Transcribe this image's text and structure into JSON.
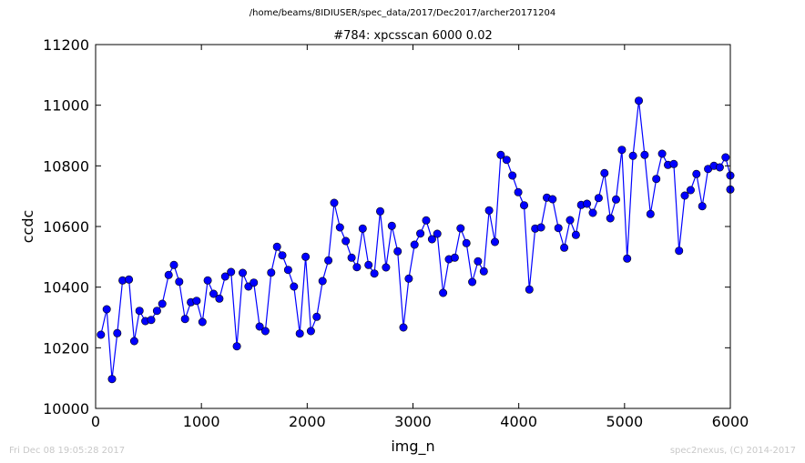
{
  "header": {
    "suptitle": "/home/beams/8IDIUSER/spec_data/2017/Dec2017/archer20171204"
  },
  "footer": {
    "timestamp": "Fri Dec 08 19:05:28 2017",
    "credit": "spec2nexus, (C) 2014-2017"
  },
  "chart_data": {
    "type": "line",
    "title": "#784: xpcsscan 6000 0.02",
    "xlabel": "img_n",
    "ylabel": "ccdc",
    "xlim": [
      0,
      6000
    ],
    "ylim": [
      10000,
      11200
    ],
    "xticks": [
      0,
      1000,
      2000,
      3000,
      4000,
      5000,
      6000
    ],
    "yticks": [
      10000,
      10200,
      10400,
      10600,
      10800,
      11000,
      11200
    ],
    "grid": false,
    "color": "#0000ff",
    "marker": "circle",
    "series": [
      {
        "x": [
          50,
          105,
          155,
          205,
          255,
          315,
          365,
          415,
          470,
          525,
          580,
          630,
          690,
          740,
          790,
          845,
          900,
          955,
          1010,
          1060,
          1115,
          1170,
          1225,
          1280,
          1335,
          1390,
          1445,
          1495,
          1550,
          1605,
          1660,
          1715,
          1765,
          1820,
          1875,
          1930,
          1985,
          2035,
          2090,
          2145,
          2200,
          2255,
          2310,
          2365,
          2420,
          2470,
          2525,
          2580,
          2635,
          2690,
          2745,
          2800,
          2855,
          2910,
          2960,
          3015,
          3070,
          3125,
          3180,
          3230,
          3285,
          3340,
          3395,
          3450,
          3505,
          3560,
          3615,
          3670,
          3720,
          3775,
          3830,
          3885,
          3940,
          3995,
          4050,
          4100,
          4155,
          4210,
          4265,
          4320,
          4375,
          4430,
          4485,
          4540,
          4590,
          4645,
          4700,
          4755,
          4810,
          4865,
          4920,
          4975,
          5025,
          5080,
          5135,
          5190,
          5245,
          5300,
          5355,
          5410,
          5465,
          5515,
          5570,
          5625,
          5680,
          5735,
          5790,
          5845,
          5900,
          5955,
          6000,
          6000
        ],
        "y": [
          10243,
          10327,
          10097,
          10248,
          10422,
          10425,
          10222,
          10322,
          10288,
          10292,
          10322,
          10345,
          10440,
          10473,
          10418,
          10295,
          10350,
          10355,
          10285,
          10422,
          10378,
          10362,
          10435,
          10450,
          10205,
          10447,
          10402,
          10415,
          10270,
          10255,
          10448,
          10533,
          10505,
          10457,
          10402,
          10247,
          10500,
          10255,
          10302,
          10420,
          10488,
          10678,
          10597,
          10552,
          10497,
          10466,
          10593,
          10473,
          10445,
          10650,
          10465,
          10602,
          10518,
          10267,
          10428,
          10540,
          10577,
          10620,
          10558,
          10576,
          10381,
          10492,
          10497,
          10594,
          10545,
          10417,
          10485,
          10452,
          10653,
          10549,
          10836,
          10820,
          10768,
          10713,
          10670,
          10392,
          10593,
          10597,
          10695,
          10690,
          10595,
          10530,
          10621,
          10572,
          10671,
          10675,
          10645,
          10694,
          10776,
          10627,
          10689,
          10853,
          10494,
          10833,
          11015,
          10836,
          10641,
          10757,
          10840,
          10803,
          10806,
          10520,
          10702,
          10720,
          10773,
          10667,
          10790,
          10800,
          10795,
          10828,
          10768,
          10722
        ]
      }
    ]
  }
}
